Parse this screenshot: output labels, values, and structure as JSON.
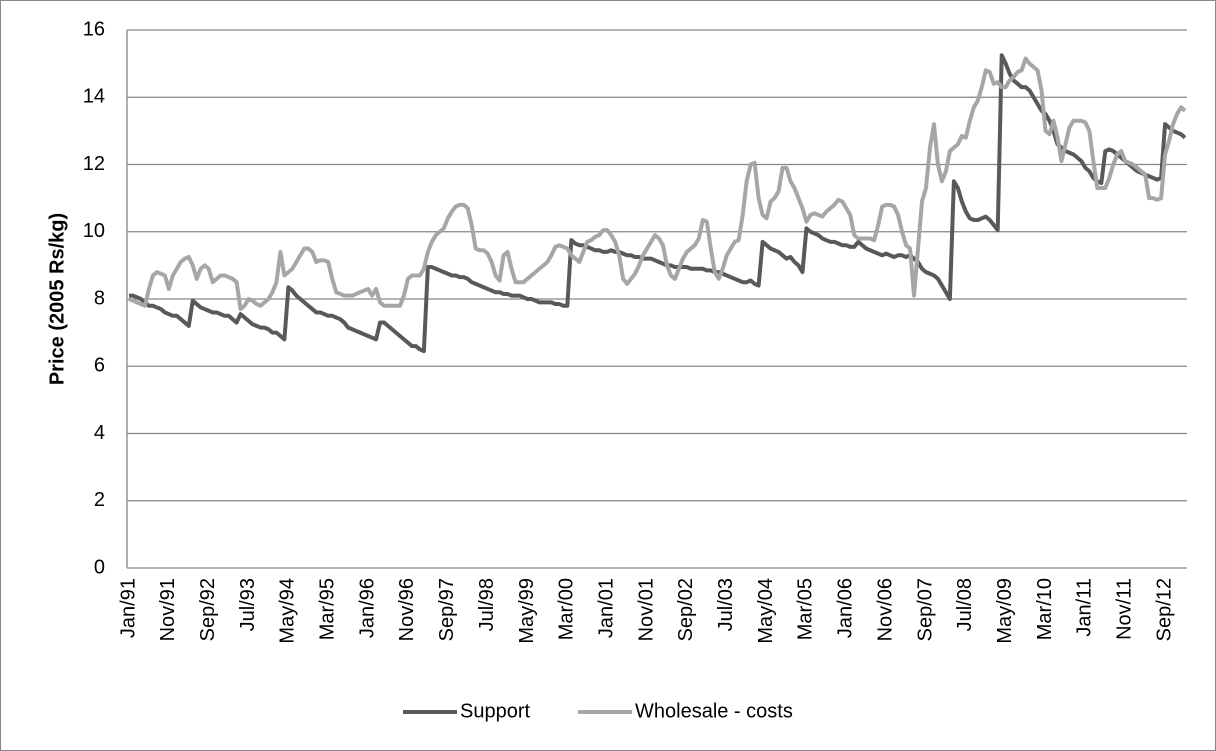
{
  "chart_data": {
    "type": "line",
    "y_label": "Price (2005 Rs/kg)",
    "ylim": [
      0,
      16
    ],
    "yticks": [
      0,
      2,
      4,
      6,
      8,
      10,
      12,
      14,
      16
    ],
    "grid": true,
    "legend": "bottom",
    "categories": [
      "Jan/91",
      null,
      null,
      null,
      null,
      null,
      null,
      null,
      null,
      null,
      "Nov/91",
      null,
      null,
      null,
      null,
      null,
      null,
      null,
      null,
      null,
      "Sep/92",
      null,
      null,
      null,
      null,
      null,
      null,
      null,
      null,
      null,
      "Jul/93",
      null,
      null,
      null,
      null,
      null,
      null,
      null,
      null,
      null,
      "May/94",
      null,
      null,
      null,
      null,
      null,
      null,
      null,
      null,
      null,
      "Mar/95",
      null,
      null,
      null,
      null,
      null,
      null,
      null,
      null,
      null,
      "Jan/96",
      null,
      null,
      null,
      null,
      null,
      null,
      null,
      null,
      null,
      "Nov/96",
      null,
      null,
      null,
      null,
      null,
      null,
      null,
      null,
      null,
      "Sep/97",
      null,
      null,
      null,
      null,
      null,
      null,
      null,
      null,
      null,
      "Jul/98",
      null,
      null,
      null,
      null,
      null,
      null,
      null,
      null,
      null,
      "May/99",
      null,
      null,
      null,
      null,
      null,
      null,
      null,
      null,
      null,
      "Mar/00",
      null,
      null,
      null,
      null,
      null,
      null,
      null,
      null,
      null,
      "Jan/01",
      null,
      null,
      null,
      null,
      null,
      null,
      null,
      null,
      null,
      "Nov/01",
      null,
      null,
      null,
      null,
      null,
      null,
      null,
      null,
      null,
      "Sep/02",
      null,
      null,
      null,
      null,
      null,
      null,
      null,
      null,
      null,
      "Jul/03",
      null,
      null,
      null,
      null,
      null,
      null,
      null,
      null,
      null,
      "May/04",
      null,
      null,
      null,
      null,
      null,
      null,
      null,
      null,
      null,
      "Mar/05",
      null,
      null,
      null,
      null,
      null,
      null,
      null,
      null,
      null,
      "Jan/06",
      null,
      null,
      null,
      null,
      null,
      null,
      null,
      null,
      null,
      "Nov/06",
      null,
      null,
      null,
      null,
      null,
      null,
      null,
      null,
      null,
      "Sep/07",
      null,
      null,
      null,
      null,
      null,
      null,
      null,
      null,
      null,
      "Jul/08",
      null,
      null,
      null,
      null,
      null,
      null,
      null,
      null,
      null,
      "May/09",
      null,
      null,
      null,
      null,
      null,
      null,
      null,
      null,
      null,
      "Mar/10",
      null,
      null,
      null,
      null,
      null,
      null,
      null,
      null,
      null,
      "Jan/11",
      null,
      null,
      null,
      null,
      null,
      null,
      null,
      null,
      null,
      "Nov/11",
      null,
      null,
      null,
      null,
      null,
      null,
      null,
      null,
      null,
      "Sep/12",
      null,
      null,
      null,
      null,
      null
    ],
    "series": [
      {
        "name": "Support",
        "color": "#595959",
        "values": [
          8.1,
          8.1,
          8.05,
          8.0,
          7.9,
          7.8,
          7.8,
          7.75,
          7.7,
          7.6,
          7.55,
          7.5,
          7.5,
          7.4,
          7.3,
          7.2,
          7.95,
          7.85,
          7.75,
          7.7,
          7.65,
          7.6,
          7.6,
          7.55,
          7.5,
          7.5,
          7.4,
          7.3,
          7.55,
          7.45,
          7.35,
          7.25,
          7.2,
          7.15,
          7.15,
          7.1,
          7.0,
          7.0,
          6.9,
          6.8,
          8.35,
          8.25,
          8.1,
          8.0,
          7.9,
          7.8,
          7.7,
          7.6,
          7.6,
          7.55,
          7.5,
          7.5,
          7.45,
          7.4,
          7.3,
          7.15,
          7.1,
          7.05,
          7.0,
          6.95,
          6.9,
          6.85,
          6.8,
          7.3,
          7.3,
          7.2,
          7.1,
          7.0,
          6.9,
          6.8,
          6.7,
          6.6,
          6.6,
          6.5,
          6.45,
          8.95,
          8.95,
          8.9,
          8.85,
          8.8,
          8.75,
          8.7,
          8.7,
          8.65,
          8.65,
          8.6,
          8.5,
          8.45,
          8.4,
          8.35,
          8.3,
          8.25,
          8.2,
          8.2,
          8.15,
          8.15,
          8.1,
          8.1,
          8.1,
          8.05,
          8.0,
          8.0,
          7.95,
          7.9,
          7.9,
          7.9,
          7.9,
          7.85,
          7.85,
          7.8,
          7.8,
          9.75,
          9.65,
          9.6,
          9.6,
          9.55,
          9.5,
          9.45,
          9.45,
          9.4,
          9.4,
          9.45,
          9.4,
          9.4,
          9.35,
          9.3,
          9.3,
          9.25,
          9.25,
          9.2,
          9.2,
          9.2,
          9.15,
          9.1,
          9.05,
          9.0,
          9.0,
          8.95,
          8.95,
          8.95,
          8.95,
          8.9,
          8.9,
          8.9,
          8.9,
          8.85,
          8.85,
          8.8,
          8.8,
          8.75,
          8.7,
          8.65,
          8.6,
          8.55,
          8.5,
          8.5,
          8.55,
          8.45,
          8.4,
          9.7,
          9.6,
          9.5,
          9.45,
          9.4,
          9.3,
          9.2,
          9.25,
          9.1,
          9.0,
          8.8,
          10.1,
          10.0,
          9.95,
          9.9,
          9.8,
          9.75,
          9.7,
          9.7,
          9.65,
          9.6,
          9.6,
          9.55,
          9.55,
          9.7,
          9.6,
          9.5,
          9.45,
          9.4,
          9.35,
          9.3,
          9.35,
          9.3,
          9.25,
          9.3,
          9.3,
          9.25,
          9.3,
          9.2,
          9.1,
          8.9,
          8.8,
          8.75,
          8.7,
          8.6,
          8.4,
          8.2,
          8.0,
          11.5,
          11.3,
          10.9,
          10.6,
          10.4,
          10.35,
          10.35,
          10.4,
          10.45,
          10.35,
          10.2,
          10.05,
          15.25,
          15.0,
          14.7,
          14.5,
          14.4,
          14.3,
          14.3,
          14.2,
          14.0,
          13.8,
          13.6,
          13.5,
          13.3,
          13.0,
          12.6,
          12.5,
          12.4,
          12.35,
          12.3,
          12.2,
          12.1,
          11.9,
          11.8,
          11.6,
          11.5,
          11.45,
          12.4,
          12.45,
          12.4,
          12.3,
          12.2,
          12.1,
          12.0,
          11.9,
          11.8,
          11.75,
          11.7,
          11.65,
          11.6,
          11.55,
          11.6,
          13.2,
          13.1,
          13.0,
          12.95,
          12.9,
          12.8
        ]
      },
      {
        "name": "Wholesale - costs",
        "color": "#a6a6a6",
        "values": [
          8.0,
          7.95,
          7.9,
          7.85,
          7.8,
          8.3,
          8.7,
          8.8,
          8.75,
          8.7,
          8.3,
          8.7,
          8.9,
          9.1,
          9.2,
          9.25,
          9.0,
          8.6,
          8.9,
          9.0,
          8.9,
          8.5,
          8.6,
          8.7,
          8.7,
          8.65,
          8.6,
          8.5,
          7.7,
          7.8,
          8.0,
          7.95,
          7.85,
          7.8,
          7.9,
          8.0,
          8.2,
          8.5,
          9.4,
          8.7,
          8.8,
          8.9,
          9.1,
          9.3,
          9.5,
          9.5,
          9.4,
          9.1,
          9.15,
          9.15,
          9.1,
          8.6,
          8.2,
          8.15,
          8.1,
          8.1,
          8.1,
          8.15,
          8.2,
          8.25,
          8.3,
          8.1,
          8.3,
          7.9,
          7.8,
          7.8,
          7.8,
          7.8,
          7.8,
          8.1,
          8.6,
          8.7,
          8.7,
          8.7,
          8.9,
          9.4,
          9.7,
          9.9,
          10.0,
          10.1,
          10.4,
          10.6,
          10.75,
          10.8,
          10.8,
          10.7,
          10.2,
          9.5,
          9.45,
          9.45,
          9.35,
          9.1,
          8.7,
          8.55,
          9.3,
          9.4,
          8.9,
          8.5,
          8.5,
          8.5,
          8.6,
          8.7,
          8.8,
          8.9,
          9.0,
          9.1,
          9.3,
          9.55,
          9.6,
          9.55,
          9.5,
          9.3,
          9.2,
          9.1,
          9.4,
          9.7,
          9.75,
          9.85,
          9.9,
          10.05,
          10.05,
          9.9,
          9.7,
          9.3,
          8.6,
          8.45,
          8.6,
          8.75,
          9.0,
          9.3,
          9.5,
          9.7,
          9.9,
          9.8,
          9.6,
          9.0,
          8.7,
          8.6,
          8.9,
          9.2,
          9.4,
          9.5,
          9.6,
          9.8,
          10.35,
          10.3,
          9.5,
          8.8,
          8.6,
          8.9,
          9.3,
          9.5,
          9.7,
          9.75,
          10.5,
          11.5,
          12.0,
          12.05,
          11.0,
          10.5,
          10.4,
          10.9,
          11.0,
          11.2,
          11.9,
          11.9,
          11.5,
          11.3,
          11.0,
          10.7,
          10.3,
          10.5,
          10.55,
          10.5,
          10.45,
          10.6,
          10.7,
          10.8,
          10.95,
          10.9,
          10.7,
          10.5,
          9.9,
          9.8,
          9.8,
          9.8,
          9.8,
          9.75,
          10.2,
          10.75,
          10.8,
          10.8,
          10.75,
          10.5,
          10.0,
          9.6,
          9.5,
          8.1,
          9.5,
          10.9,
          11.3,
          12.5,
          13.2,
          12.0,
          11.5,
          11.8,
          12.4,
          12.5,
          12.6,
          12.85,
          12.8,
          13.3,
          13.7,
          13.9,
          14.3,
          14.8,
          14.75,
          14.4,
          14.45,
          14.3,
          14.3,
          14.5,
          14.6,
          14.75,
          14.8,
          15.15,
          15.0,
          14.9,
          14.8,
          14.2,
          13.0,
          12.9,
          13.3,
          12.8,
          12.1,
          12.6,
          13.1,
          13.3,
          13.3,
          13.3,
          13.25,
          13.0,
          12.1,
          11.3,
          11.3,
          11.3,
          11.6,
          12.0,
          12.3,
          12.4,
          12.1,
          12.05,
          12.0,
          11.9,
          11.8,
          11.7,
          11.0,
          11.0,
          10.95,
          11.0,
          12.3,
          12.7,
          13.2,
          13.5,
          13.7,
          13.6
        ]
      }
    ]
  }
}
